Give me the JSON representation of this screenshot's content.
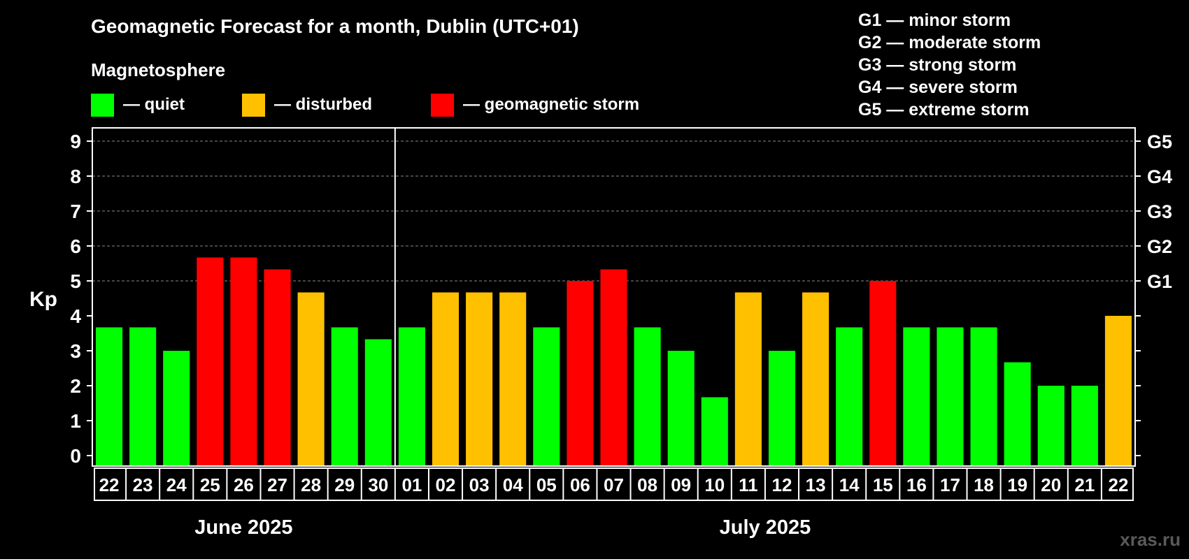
{
  "chart_data": {
    "type": "bar",
    "title": "Geomagnetic Forecast for a month, Dublin (UTC+01)",
    "legend_title": "Magnetosphere",
    "legend": [
      {
        "label": "— quiet",
        "color": "#00ff00"
      },
      {
        "label": "— disturbed",
        "color": "#ffc000"
      },
      {
        "label": "— geomagnetic storm",
        "color": "#ff0000"
      }
    ],
    "storm_scale": [
      "G1 — minor storm",
      "G2 — moderate storm",
      "G3 — strong storm",
      "G4 — severe storm",
      "G5 — extreme storm"
    ],
    "ylabel": "Kp",
    "ylim": [
      0,
      9
    ],
    "yticks": [
      "0",
      "1",
      "2",
      "3",
      "4",
      "5",
      "6",
      "7",
      "8",
      "9"
    ],
    "right_ticks": [
      {
        "value": 5,
        "label": "G1"
      },
      {
        "value": 6,
        "label": "G2"
      },
      {
        "value": 7,
        "label": "G3"
      },
      {
        "value": 8,
        "label": "G4"
      },
      {
        "value": 9,
        "label": "G5"
      }
    ],
    "categories": [
      "22",
      "23",
      "24",
      "25",
      "26",
      "27",
      "28",
      "29",
      "30",
      "01",
      "02",
      "03",
      "04",
      "05",
      "06",
      "07",
      "08",
      "09",
      "10",
      "11",
      "12",
      "13",
      "14",
      "15",
      "16",
      "17",
      "18",
      "19",
      "20",
      "21",
      "22"
    ],
    "values": [
      3.67,
      3.67,
      3.0,
      5.67,
      5.67,
      5.33,
      4.67,
      3.67,
      3.33,
      3.67,
      4.67,
      4.67,
      4.67,
      3.67,
      5.0,
      5.33,
      3.67,
      3.0,
      1.67,
      4.67,
      3.0,
      4.67,
      3.67,
      5.0,
      3.67,
      3.67,
      3.67,
      2.67,
      2.0,
      2.0,
      4.0
    ],
    "levels": [
      "quiet",
      "quiet",
      "quiet",
      "storm",
      "storm",
      "storm",
      "disturbed",
      "quiet",
      "quiet",
      "quiet",
      "disturbed",
      "disturbed",
      "disturbed",
      "quiet",
      "storm",
      "storm",
      "quiet",
      "quiet",
      "quiet",
      "disturbed",
      "quiet",
      "disturbed",
      "quiet",
      "storm",
      "quiet",
      "quiet",
      "quiet",
      "quiet",
      "quiet",
      "quiet",
      "disturbed"
    ],
    "colors": {
      "quiet": "#00ff00",
      "disturbed": "#ffc000",
      "storm": "#ff0000"
    },
    "months": [
      {
        "label": "June 2025",
        "count": 9
      },
      {
        "label": "July 2025",
        "count": 22
      }
    ],
    "watermark": "xras.ru"
  }
}
